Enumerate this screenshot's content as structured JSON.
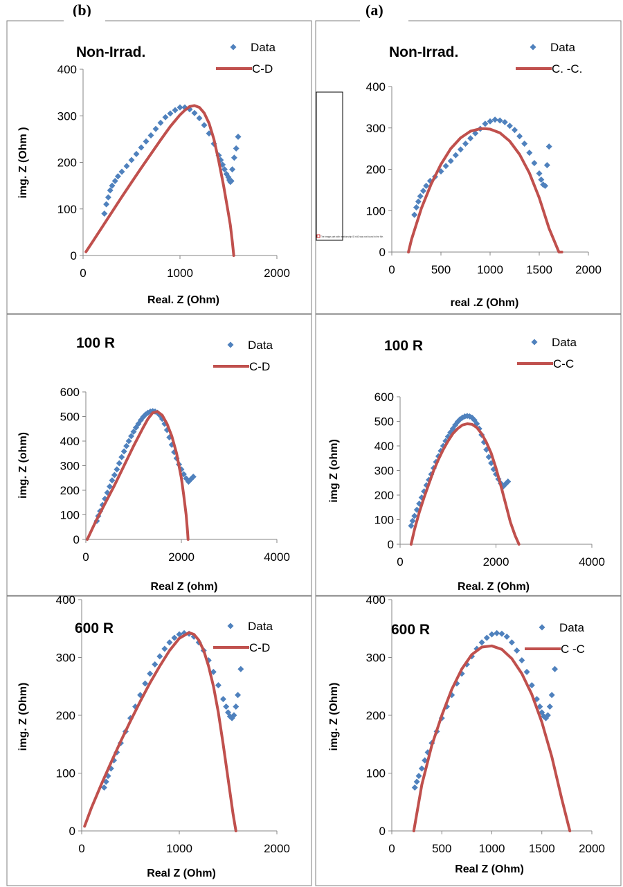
{
  "panel_labels": {
    "left": "(b)",
    "right": "(a)"
  },
  "placeholder_text": "The image part with relationship ID rId3 was not found in the file.",
  "colors": {
    "data": "#4f81bd",
    "fit": "#c0504d",
    "frame": "#7f7f7f"
  },
  "chart_data": [
    {
      "type": "scatter",
      "panel": "b",
      "row": 1,
      "title": "Non-Irrad.",
      "xlabel": "Real. Z  (Ohm)",
      "ylabel": "img. Z  (Ohm )",
      "xlim": [
        0,
        2000
      ],
      "ylim": [
        0,
        400
      ],
      "xticks": [
        0,
        1000,
        2000
      ],
      "yticks": [
        0,
        100,
        200,
        300,
        400
      ],
      "series": [
        {
          "name": "Data",
          "kind": "markers",
          "x": [
            220,
            240,
            260,
            280,
            300,
            330,
            360,
            400,
            450,
            500,
            550,
            600,
            650,
            700,
            750,
            800,
            850,
            900,
            950,
            1000,
            1050,
            1100,
            1150,
            1200,
            1250,
            1300,
            1350,
            1400,
            1420,
            1440,
            1460,
            1480,
            1500,
            1510,
            1520,
            1530,
            1540,
            1560,
            1580,
            1600
          ],
          "y": [
            90,
            110,
            125,
            140,
            150,
            160,
            170,
            180,
            192,
            205,
            218,
            232,
            245,
            258,
            272,
            285,
            297,
            305,
            312,
            318,
            318,
            314,
            306,
            295,
            280,
            262,
            240,
            215,
            205,
            195,
            185,
            175,
            168,
            162,
            158,
            160,
            185,
            210,
            230,
            255
          ]
        },
        {
          "name": "C-D",
          "kind": "line",
          "x": [
            30,
            100,
            200,
            300,
            400,
            500,
            600,
            700,
            800,
            900,
            1000,
            1050,
            1100,
            1150,
            1200,
            1250,
            1300,
            1350,
            1400,
            1450,
            1500,
            1520,
            1540,
            1550,
            1555
          ],
          "y": [
            8,
            30,
            62,
            94,
            126,
            157,
            188,
            218,
            248,
            277,
            302,
            312,
            320,
            322,
            318,
            306,
            284,
            250,
            203,
            150,
            90,
            65,
            30,
            10,
            0
          ]
        }
      ]
    },
    {
      "type": "scatter",
      "panel": "a",
      "row": 1,
      "title": "Non-Irrad.",
      "xlabel": "real .Z (Ohm)",
      "ylabel": "",
      "xlim": [
        0,
        2000
      ],
      "ylim": [
        0,
        400
      ],
      "xticks": [
        0,
        500,
        1000,
        1500,
        2000
      ],
      "yticks": [
        0,
        100,
        200,
        300,
        400
      ],
      "series": [
        {
          "name": "Data",
          "kind": "markers",
          "x": [
            230,
            250,
            270,
            290,
            320,
            350,
            390,
            440,
            500,
            550,
            600,
            650,
            700,
            750,
            800,
            850,
            900,
            950,
            1000,
            1050,
            1100,
            1150,
            1200,
            1250,
            1300,
            1350,
            1400,
            1450,
            1500,
            1520,
            1540,
            1560,
            1580,
            1600
          ],
          "y": [
            90,
            108,
            122,
            135,
            148,
            160,
            172,
            182,
            195,
            208,
            220,
            234,
            248,
            262,
            275,
            287,
            298,
            310,
            316,
            320,
            318,
            314,
            305,
            295,
            280,
            262,
            240,
            215,
            190,
            175,
            163,
            160,
            210,
            255
          ]
        },
        {
          "name": "C. -C.",
          "kind": "line",
          "x": [
            170,
            200,
            300,
            400,
            500,
            600,
            700,
            800,
            900,
            950,
            1000,
            1100,
            1200,
            1300,
            1400,
            1500,
            1600,
            1700,
            1730
          ],
          "y": [
            0,
            30,
            105,
            164,
            212,
            250,
            276,
            292,
            298,
            298,
            297,
            288,
            268,
            236,
            191,
            131,
            57,
            0,
            0
          ]
        }
      ]
    },
    {
      "type": "scatter",
      "panel": "b",
      "row": 2,
      "title": "100 R",
      "xlabel": "Real  Z (ohm)",
      "ylabel": "img. Z (ohm)",
      "xlim": [
        0,
        4000
      ],
      "ylim": [
        0,
        600
      ],
      "xticks": [
        0,
        2000,
        4000
      ],
      "yticks": [
        0,
        100,
        200,
        300,
        400,
        500,
        600
      ],
      "series": [
        {
          "name": "Data",
          "kind": "markers",
          "x": [
            230,
            260,
            300,
            350,
            400,
            450,
            500,
            550,
            600,
            650,
            700,
            750,
            800,
            850,
            900,
            950,
            1000,
            1050,
            1100,
            1150,
            1200,
            1250,
            1300,
            1350,
            1400,
            1450,
            1500,
            1550,
            1600,
            1650,
            1700,
            1750,
            1800,
            1850,
            1900,
            1950,
            2000,
            2050,
            2100,
            2150,
            2200,
            2250
          ],
          "y": [
            75,
            95,
            115,
            140,
            165,
            190,
            215,
            240,
            262,
            285,
            310,
            335,
            358,
            380,
            400,
            420,
            438,
            455,
            470,
            485,
            498,
            508,
            515,
            520,
            522,
            520,
            515,
            505,
            490,
            470,
            445,
            415,
            385,
            355,
            330,
            305,
            285,
            265,
            248,
            235,
            245,
            255
          ]
        },
        {
          "name": "C-D",
          "kind": "line",
          "x": [
            30,
            200,
            400,
            600,
            800,
            1000,
            1200,
            1300,
            1400,
            1500,
            1600,
            1700,
            1800,
            1900,
            2000,
            2050,
            2100,
            2130,
            2140
          ],
          "y": [
            0,
            70,
            145,
            220,
            300,
            380,
            455,
            490,
            515,
            520,
            505,
            470,
            420,
            350,
            250,
            180,
            100,
            30,
            0
          ]
        }
      ]
    },
    {
      "type": "scatter",
      "panel": "a",
      "row": 2,
      "title": "100 R",
      "xlabel": "Real. Z (Ohm)",
      "ylabel": "img Z (ohm)",
      "xlim": [
        0,
        4000
      ],
      "ylim": [
        0,
        600
      ],
      "xticks": [
        0,
        2000,
        4000
      ],
      "yticks": [
        0,
        100,
        200,
        300,
        400,
        500,
        600
      ],
      "series": [
        {
          "name": "Data",
          "kind": "markers",
          "x": [
            230,
            260,
            300,
            350,
            400,
            450,
            500,
            550,
            600,
            650,
            700,
            750,
            800,
            850,
            900,
            950,
            1000,
            1050,
            1100,
            1150,
            1200,
            1250,
            1300,
            1350,
            1400,
            1450,
            1500,
            1550,
            1600,
            1650,
            1700,
            1750,
            1800,
            1850,
            1900,
            1950,
            2000,
            2050,
            2100,
            2150,
            2200,
            2250
          ],
          "y": [
            75,
            95,
            115,
            140,
            165,
            190,
            215,
            240,
            262,
            285,
            310,
            335,
            358,
            380,
            400,
            420,
            438,
            455,
            470,
            485,
            498,
            508,
            515,
            520,
            522,
            520,
            515,
            505,
            490,
            470,
            445,
            415,
            385,
            355,
            330,
            305,
            285,
            265,
            248,
            235,
            245,
            255
          ]
        },
        {
          "name": "C-C",
          "kind": "line",
          "x": [
            230,
            300,
            400,
            500,
            600,
            700,
            800,
            900,
            1000,
            1100,
            1200,
            1300,
            1400,
            1500,
            1600,
            1700,
            1800,
            1900,
            2000,
            2100,
            2200,
            2300,
            2400,
            2480
          ],
          "y": [
            0,
            60,
            130,
            190,
            245,
            300,
            345,
            385,
            420,
            450,
            470,
            485,
            490,
            488,
            475,
            450,
            415,
            370,
            310,
            240,
            165,
            90,
            35,
            0
          ]
        }
      ]
    },
    {
      "type": "scatter",
      "panel": "b",
      "row": 3,
      "title": "600 R",
      "xlabel": "Real  Z (Ohm)",
      "ylabel": "img. Z (Ohm)",
      "xlim": [
        0,
        2000
      ],
      "ylim": [
        0,
        400
      ],
      "xticks": [
        0,
        1000,
        2000
      ],
      "yticks": [
        0,
        100,
        200,
        300,
        400
      ],
      "series": [
        {
          "name": "Data",
          "kind": "markers",
          "x": [
            230,
            250,
            270,
            300,
            330,
            360,
            400,
            450,
            500,
            550,
            600,
            650,
            700,
            750,
            800,
            850,
            900,
            950,
            1000,
            1050,
            1100,
            1150,
            1200,
            1250,
            1300,
            1350,
            1400,
            1450,
            1480,
            1500,
            1520,
            1540,
            1560,
            1580,
            1600,
            1630
          ],
          "y": [
            75,
            85,
            95,
            108,
            122,
            136,
            152,
            172,
            195,
            215,
            235,
            255,
            272,
            288,
            302,
            315,
            326,
            334,
            340,
            342,
            341,
            336,
            326,
            312,
            295,
            275,
            252,
            228,
            215,
            205,
            198,
            195,
            200,
            215,
            235,
            280
          ]
        },
        {
          "name": "C-D",
          "kind": "line",
          "x": [
            30,
            100,
            200,
            300,
            400,
            500,
            600,
            700,
            800,
            900,
            1000,
            1100,
            1150,
            1200,
            1250,
            1300,
            1350,
            1400,
            1450,
            1500,
            1550,
            1570,
            1580
          ],
          "y": [
            8,
            40,
            80,
            118,
            155,
            190,
            224,
            256,
            285,
            312,
            333,
            343,
            340,
            330,
            312,
            285,
            250,
            205,
            150,
            90,
            30,
            10,
            0
          ]
        }
      ]
    },
    {
      "type": "scatter",
      "panel": "a",
      "row": 3,
      "title": "600 R",
      "xlabel": "Real Z (Ohm)",
      "ylabel": "img. Z (Ohm)",
      "xlim": [
        0,
        2000
      ],
      "ylim": [
        0,
        400
      ],
      "xticks": [
        0,
        500,
        1000,
        1500,
        2000
      ],
      "yticks": [
        0,
        100,
        200,
        300,
        400
      ],
      "series": [
        {
          "name": "Data",
          "kind": "markers",
          "x": [
            230,
            250,
            270,
            300,
            330,
            360,
            400,
            450,
            500,
            550,
            600,
            650,
            700,
            750,
            800,
            850,
            900,
            950,
            1000,
            1050,
            1100,
            1150,
            1200,
            1250,
            1300,
            1350,
            1400,
            1450,
            1480,
            1500,
            1520,
            1540,
            1560,
            1580,
            1600,
            1630
          ],
          "y": [
            75,
            85,
            95,
            108,
            122,
            136,
            152,
            172,
            195,
            215,
            235,
            255,
            272,
            288,
            302,
            315,
            326,
            334,
            340,
            342,
            341,
            336,
            326,
            312,
            295,
            275,
            252,
            228,
            215,
            205,
            198,
            195,
            200,
            215,
            235,
            280
          ]
        },
        {
          "name": "C -C",
          "kind": "line",
          "x": [
            220,
            300,
            400,
            500,
            600,
            700,
            800,
            900,
            1000,
            1100,
            1200,
            1300,
            1400,
            1500,
            1600,
            1700,
            1780
          ],
          "y": [
            0,
            80,
            148,
            200,
            245,
            280,
            305,
            318,
            320,
            314,
            298,
            272,
            236,
            188,
            128,
            55,
            0
          ]
        }
      ]
    }
  ]
}
